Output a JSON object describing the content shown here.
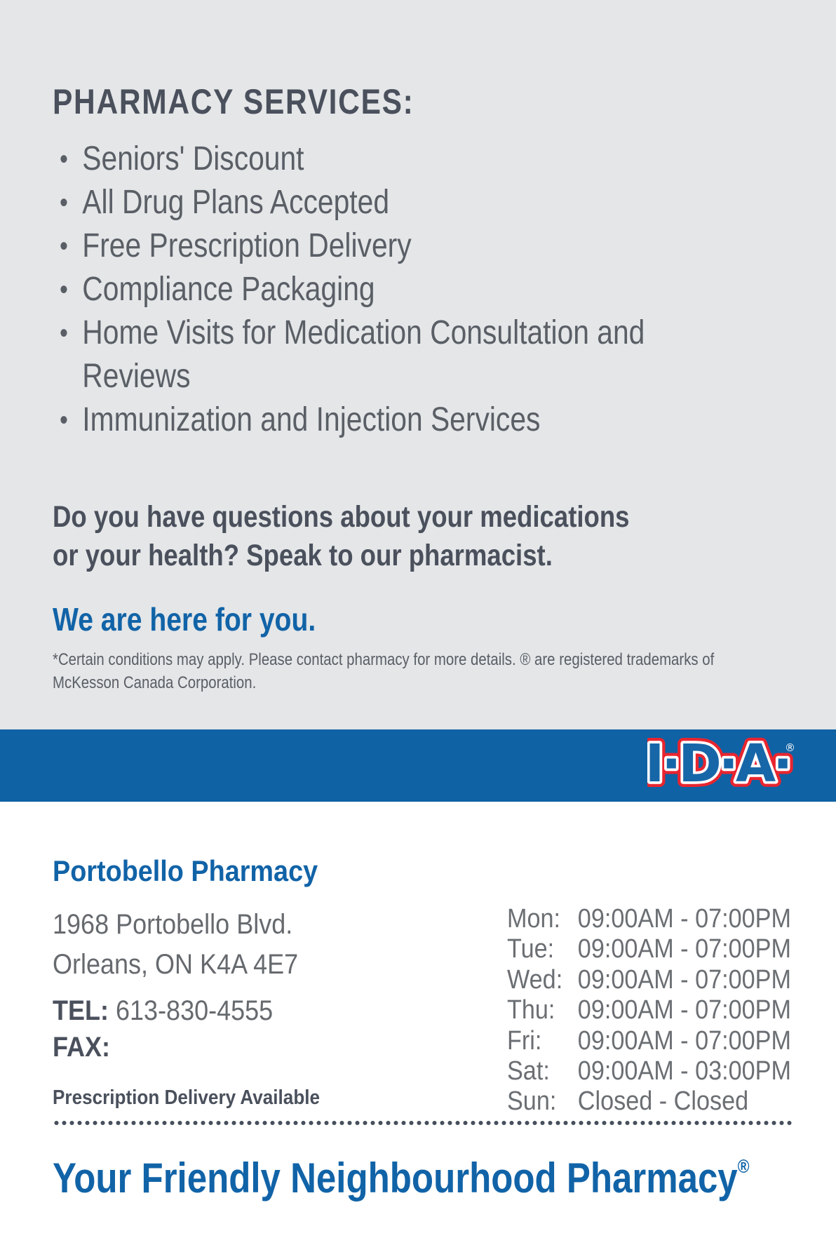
{
  "panel": {
    "heading": "PHARMACY SERVICES:",
    "services": [
      "Seniors' Discount",
      "All Drug Plans Accepted",
      "Free Prescription Delivery",
      "Compliance Packaging",
      "Home Visits for Medication Consultation and Reviews",
      "Immunization and Injection Services"
    ],
    "question_lines": [
      "Do you have questions about your medications",
      "or your health? Speak to our pharmacist."
    ],
    "tagline": "We are here for you.",
    "disclaimer_lines": [
      "*Certain conditions may apply. Please contact pharmacy for more details. ® are registered trademarks of",
      "McKesson Canada Corporation."
    ]
  },
  "brand_band": {
    "logo_text": "I·D·A·",
    "logo_registered": "®"
  },
  "store": {
    "name": "Portobello Pharmacy",
    "address_lines": [
      "1968 Portobello Blvd.",
      "Orleans, ON K4A 4E7"
    ],
    "tel_label": "TEL:",
    "tel_value": "613-830-4555",
    "fax_label": "FAX:",
    "fax_value": "",
    "delivery_note": "Prescription Delivery Available"
  },
  "hours": [
    {
      "day": "Mon:",
      "time": "09:00AM - 07:00PM"
    },
    {
      "day": "Tue:",
      "time": "09:00AM - 07:00PM"
    },
    {
      "day": "Wed:",
      "time": "09:00AM - 07:00PM"
    },
    {
      "day": "Thu:",
      "time": "09:00AM - 07:00PM"
    },
    {
      "day": "Fri:",
      "time": "09:00AM - 07:00PM"
    },
    {
      "day": "Sat:",
      "time": "09:00AM - 03:00PM"
    },
    {
      "day": "Sun:",
      "time": "Closed - Closed"
    }
  ],
  "footer": {
    "headline": "Your Friendly Neighbourhood Pharmacy",
    "registered": "®"
  },
  "colors": {
    "panel_bg": "#e4e6e8",
    "band_blue": "#0f62a4",
    "brand_blue": "#1163a7",
    "logo_blue": "#1767a8",
    "logo_red": "#e8252f",
    "text_dark": "#4a505c",
    "text_gray": "#5a5f66",
    "text_muted": "#666a6e",
    "hours_gray": "#6b6f73",
    "dot_gray": "#47505c"
  }
}
